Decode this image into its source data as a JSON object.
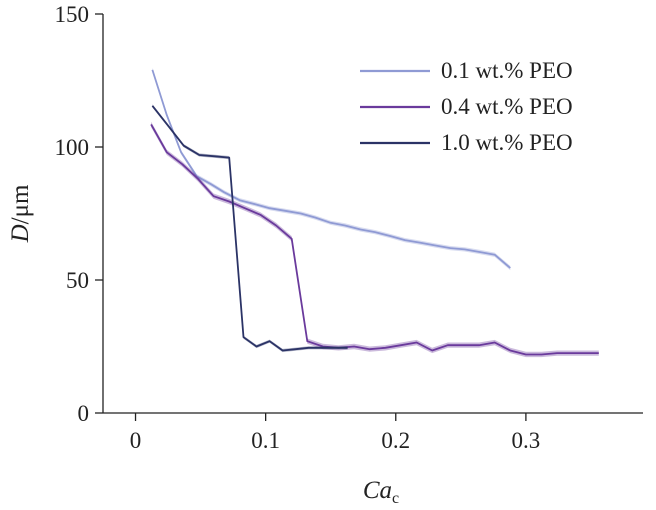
{
  "chart_data": {
    "type": "line",
    "title": "",
    "xlabel": {
      "main": "Ca",
      "sub": "c"
    },
    "ylabel": {
      "main": "D",
      "unit": "/μm"
    },
    "xlim": [
      -0.025,
      0.39
    ],
    "ylim": [
      0,
      150
    ],
    "xticks": [
      0,
      0.1,
      0.2,
      0.3
    ],
    "xtick_labels": [
      "0",
      "0.1",
      "0.2",
      "0.3"
    ],
    "yticks": [
      0,
      50,
      100,
      150
    ],
    "ytick_labels": [
      "0",
      "50",
      "100",
      "150"
    ],
    "grid": false,
    "legend_position": "top-right",
    "series": [
      {
        "name": "0.1 wt.% PEO",
        "color": "#8f9ad4",
        "band": 0.8,
        "x": [
          0.013,
          0.024,
          0.035,
          0.047,
          0.058,
          0.068,
          0.08,
          0.092,
          0.103,
          0.115,
          0.127,
          0.138,
          0.15,
          0.161,
          0.173,
          0.184,
          0.196,
          0.207,
          0.219,
          0.23,
          0.242,
          0.253,
          0.265,
          0.276,
          0.288
        ],
        "y": [
          129,
          112,
          98,
          89,
          86,
          83,
          80,
          78.5,
          77,
          76,
          75,
          73.5,
          71.5,
          70.5,
          69,
          68,
          66.5,
          65,
          64,
          63,
          62,
          61.5,
          60.5,
          59.5,
          54.5
        ]
      },
      {
        "name": "0.4 wt.% PEO",
        "color": "#6a3a9c",
        "band": 1.0,
        "x": [
          0.012,
          0.024,
          0.036,
          0.048,
          0.06,
          0.072,
          0.084,
          0.096,
          0.108,
          0.12,
          0.132,
          0.144,
          0.156,
          0.168,
          0.18,
          0.192,
          0.204,
          0.216,
          0.228,
          0.24,
          0.252,
          0.264,
          0.276,
          0.288,
          0.3,
          0.312,
          0.324,
          0.336,
          0.348,
          0.356
        ],
        "y": [
          108.5,
          98,
          93.5,
          88,
          81.5,
          79.5,
          77,
          74.5,
          70.5,
          65.5,
          27,
          25,
          24.5,
          25,
          24,
          24.5,
          25.5,
          26.5,
          23.5,
          25.5,
          25.5,
          25.5,
          26.5,
          23.5,
          22,
          22,
          22.5,
          22.5,
          22.5,
          22.5
        ]
      },
      {
        "name": "1.0 wt.% PEO",
        "color": "#2b3366",
        "band": 0.6,
        "x": [
          0.013,
          0.025,
          0.037,
          0.049,
          0.061,
          0.072,
          0.083,
          0.093,
          0.103,
          0.113,
          0.123,
          0.133,
          0.143,
          0.153,
          0.163
        ],
        "y": [
          115.5,
          108,
          100.5,
          97,
          96.5,
          96,
          28.5,
          25,
          27,
          23.5,
          24,
          24.5,
          24.5,
          24.5,
          24.5
        ]
      }
    ]
  }
}
